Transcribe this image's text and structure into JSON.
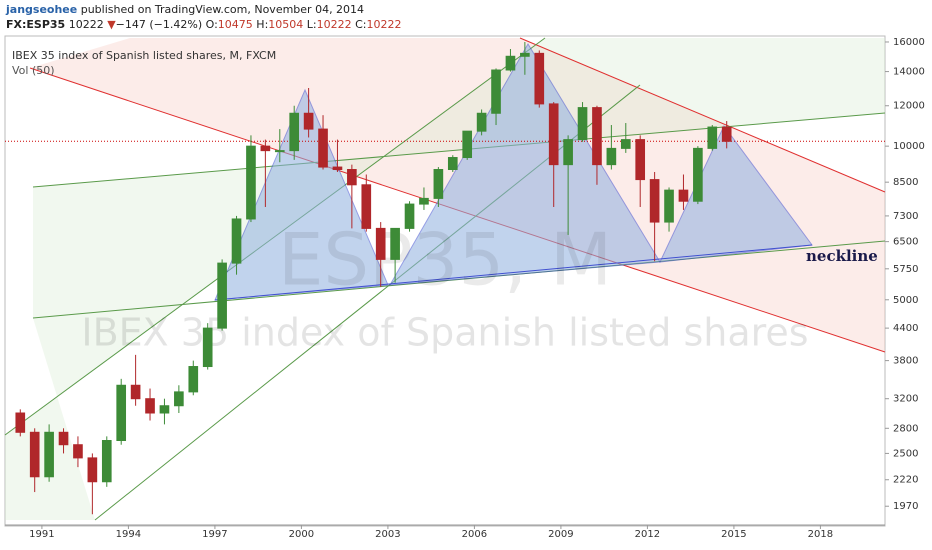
{
  "header": {
    "author": "jangseohee",
    "published": "published on TradingView.com, November 04, 2014",
    "symbol": "FX:ESP35",
    "last": "10222",
    "arrow": "▼",
    "change": "−147 (−1.42%)",
    "ohlc": [
      {
        "label": "O:",
        "value": "10475"
      },
      {
        "label": "H:",
        "value": "10504"
      },
      {
        "label": "L:",
        "value": "10222"
      },
      {
        "label": "C:",
        "value": "10222"
      }
    ]
  },
  "chart_data": {
    "type": "candlestick",
    "title": "IBEX 35 index of Spanish listed shares, M, FXCM",
    "indicator": "Vol (50)",
    "watermark": [
      "ESP35, M",
      "IBEX 35 index of Spanish listed shares"
    ],
    "annotation": "neckline",
    "log_scale": true,
    "up_color": "#3d8b37",
    "down_color": "#b0272a",
    "price_line": 10222,
    "price_line_color": "#cc0000",
    "xlim": [
      1989.72,
      2020.24
    ],
    "xticks": [
      1991,
      1994,
      1997,
      2000,
      2003,
      2006,
      2009,
      2012,
      2015,
      2018
    ],
    "ylim": [
      1810,
      16290
    ],
    "yticks": [
      1970,
      2220,
      2500,
      2800,
      3200,
      3800,
      4400,
      5000,
      5750,
      6500,
      7300,
      8500,
      10000,
      12000,
      14000,
      16000
    ],
    "x": [
      1990.25,
      1990.75,
      1991.25,
      1991.75,
      1992.25,
      1992.75,
      1993.25,
      1993.75,
      1994.25,
      1994.75,
      1995.25,
      1995.75,
      1996.25,
      1996.75,
      1997.25,
      1997.75,
      1998.25,
      1998.75,
      1999.25,
      1999.75,
      2000.25,
      2000.75,
      2001.25,
      2001.75,
      2002.25,
      2002.75,
      2003.25,
      2003.75,
      2004.25,
      2004.75,
      2005.25,
      2005.75,
      2006.25,
      2006.75,
      2007.25,
      2007.75,
      2008.25,
      2008.75,
      2009.25,
      2009.75,
      2010.25,
      2010.75,
      2011.25,
      2011.75,
      2012.25,
      2012.75,
      2013.25,
      2013.75,
      2014.25,
      2014.75
    ],
    "open": [
      3000,
      2750,
      2250,
      2750,
      2600,
      2450,
      2200,
      2650,
      3400,
      3200,
      3000,
      3100,
      3300,
      3700,
      4400,
      5900,
      7200,
      10000,
      9800,
      9800,
      11600,
      10800,
      9100,
      9000,
      8400,
      6900,
      6000,
      6900,
      7700,
      7900,
      9000,
      9500,
      10700,
      11600,
      14100,
      15000,
      15200,
      12100,
      9200,
      10300,
      11900,
      9200,
      9900,
      10300,
      8600,
      7100,
      8200,
      7800,
      9900,
      10900
    ],
    "high": [
      3050,
      2800,
      2850,
      2800,
      2700,
      2500,
      2700,
      3500,
      3900,
      3350,
      3200,
      3400,
      3800,
      4500,
      6000,
      7300,
      10500,
      10300,
      10800,
      12000,
      13000,
      11500,
      10300,
      9200,
      8800,
      7100,
      6900,
      7800,
      8300,
      9100,
      9600,
      10700,
      11800,
      14200,
      15500,
      16000,
      15400,
      12200,
      10500,
      12200,
      12000,
      11000,
      11100,
      10500,
      8900,
      8300,
      8800,
      10000,
      11000,
      11200
    ],
    "low": [
      2700,
      2100,
      2200,
      2500,
      2350,
      1900,
      2150,
      2600,
      3100,
      2900,
      2850,
      3000,
      3250,
      3650,
      4350,
      5600,
      7100,
      7600,
      9300,
      9400,
      10400,
      9000,
      8900,
      6900,
      6800,
      5300,
      5400,
      6800,
      7500,
      7600,
      8900,
      9400,
      10500,
      11000,
      14000,
      13800,
      11900,
      7600,
      6700,
      10200,
      8400,
      9000,
      9700,
      7600,
      5950,
      6800,
      7500,
      7700,
      9800,
      9900
    ],
    "close": [
      2750,
      2250,
      2750,
      2600,
      2450,
      2200,
      2650,
      3400,
      3200,
      3000,
      3100,
      3300,
      3700,
      4400,
      5900,
      7200,
      10000,
      9800,
      9800,
      11600,
      10800,
      9100,
      9000,
      8400,
      6900,
      6000,
      6900,
      7700,
      7900,
      9000,
      9500,
      10700,
      11600,
      14100,
      15000,
      15200,
      12100,
      9200,
      10300,
      11900,
      9200,
      9900,
      10300,
      8600,
      7100,
      8200,
      7800,
      9900,
      10900,
      10222
    ]
  }
}
